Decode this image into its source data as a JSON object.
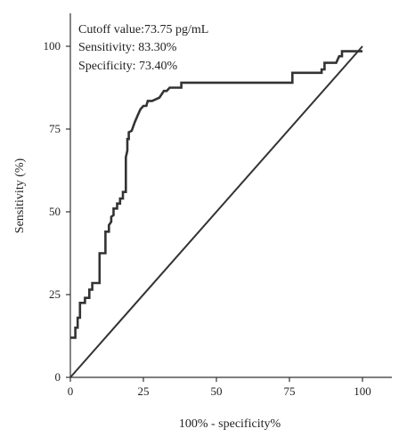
{
  "chart_data": {
    "type": "line",
    "xlabel": "100% - specificity%",
    "ylabel": "Sensitivity (%)",
    "xlim": [
      0,
      110
    ],
    "ylim": [
      0,
      110
    ],
    "xticks": [
      0,
      25,
      50,
      75,
      100
    ],
    "yticks": [
      0,
      25,
      50,
      75,
      100
    ],
    "annotations": [
      "Cutoff value:73.75 pg/mL",
      "Sensitivity: 83.30%",
      "Specificity: 73.40%"
    ],
    "series": [
      {
        "points": [
          [
            0,
            12
          ],
          [
            1.7,
            12
          ],
          [
            1.7,
            15
          ],
          [
            2.5,
            15
          ],
          [
            2.5,
            18
          ],
          [
            3.3,
            18
          ],
          [
            3.3,
            22.5
          ],
          [
            5,
            22.5
          ],
          [
            5,
            24
          ],
          [
            6.5,
            24
          ],
          [
            6.5,
            26.5
          ],
          [
            7.5,
            26.5
          ],
          [
            7.5,
            28.5
          ],
          [
            9.5,
            28.5
          ],
          [
            10,
            28.5
          ],
          [
            10,
            37.5
          ],
          [
            12,
            37.5
          ],
          [
            12,
            44
          ],
          [
            13.2,
            44
          ],
          [
            13.2,
            46
          ],
          [
            14,
            47
          ],
          [
            14,
            48.5
          ],
          [
            14.8,
            49
          ],
          [
            14.8,
            51
          ],
          [
            16,
            51
          ],
          [
            16,
            52.5
          ],
          [
            17,
            52.5
          ],
          [
            17,
            54
          ],
          [
            18,
            54
          ],
          [
            18,
            56
          ],
          [
            19,
            56
          ],
          [
            19,
            66.5
          ],
          [
            19.5,
            68.5
          ],
          [
            19.5,
            72
          ],
          [
            20,
            72
          ],
          [
            20,
            74
          ],
          [
            21,
            74.5
          ],
          [
            22,
            77
          ],
          [
            23,
            79
          ],
          [
            24,
            81
          ],
          [
            25,
            82
          ],
          [
            26,
            82
          ],
          [
            26.5,
            83.5
          ],
          [
            28,
            83.5
          ],
          [
            30.5,
            84.5
          ],
          [
            32,
            86.5
          ],
          [
            33,
            86.5
          ],
          [
            34,
            87.5
          ],
          [
            38,
            87.5
          ],
          [
            38,
            89
          ],
          [
            76,
            89
          ],
          [
            76,
            92
          ],
          [
            86,
            92
          ],
          [
            86,
            93
          ],
          [
            87,
            93
          ],
          [
            87,
            95
          ],
          [
            91,
            95
          ],
          [
            92,
            97
          ],
          [
            93,
            97
          ],
          [
            93,
            98.5
          ],
          [
            100,
            98.5
          ]
        ]
      },
      {
        "points": [
          [
            0,
            0
          ],
          [
            100,
            100
          ]
        ]
      }
    ]
  }
}
